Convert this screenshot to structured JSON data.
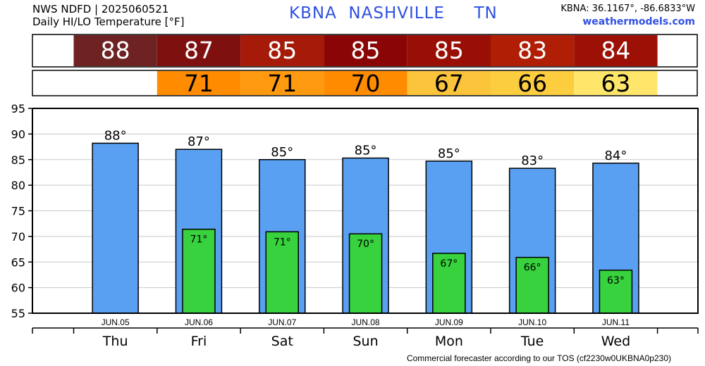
{
  "header": {
    "line1": "NWS NDFD | 2025060521",
    "line2": "Daily HI/LO Temperature [°F]",
    "station_title": "KBNA  NASHVILLE     TN",
    "coords": "KBNA: 36.1167°, -86.6833°W",
    "site": "weathermodels.com"
  },
  "footer": "Commercial forecaster according to our TOS (cf2230w0UKBNA0p230)",
  "colors": {
    "hi_bar": "#5aa0f2",
    "lo_bar": "#37d23d",
    "hi_cells": [
      "#6e2222",
      "#7e1010",
      "#a51a08",
      "#8a0505",
      "#9a0f05",
      "#b01e05",
      "#9c1005"
    ],
    "lo_cells": [
      null,
      "#ff8c00",
      "#ff9a10",
      "#ff8c00",
      "#fbc43a",
      "#fccd3f",
      "#fde66a"
    ]
  },
  "chart_data": {
    "type": "bar",
    "categories": [
      "Thu",
      "Fri",
      "Sat",
      "Sun",
      "Mon",
      "Tue",
      "Wed"
    ],
    "dates": [
      "JUN.05",
      "JUN.06",
      "JUN.07",
      "JUN.08",
      "JUN.09",
      "JUN.10",
      "JUN.11"
    ],
    "series": [
      {
        "values": [
          88.2,
          87,
          85,
          85.3,
          84.7,
          83.3,
          84.3
        ]
      },
      {
        "values": [
          null,
          71.4,
          70.9,
          70.5,
          66.7,
          65.9,
          63.4
        ]
      }
    ],
    "hi_labels": [
      "88°",
      "87°",
      "85°",
      "85°",
      "85°",
      "83°",
      "84°"
    ],
    "lo_labels": [
      "",
      "71°",
      "71°",
      "70°",
      "67°",
      "66°",
      "63°"
    ],
    "hi_table": [
      "88",
      "87",
      "85",
      "85",
      "85",
      "83",
      "84"
    ],
    "lo_table": [
      "",
      "71",
      "71",
      "70",
      "67",
      "66",
      "63"
    ],
    "yticks": [
      55,
      60,
      65,
      70,
      75,
      80,
      85,
      90,
      95
    ],
    "ylim": [
      55,
      95
    ],
    "grid": true
  }
}
